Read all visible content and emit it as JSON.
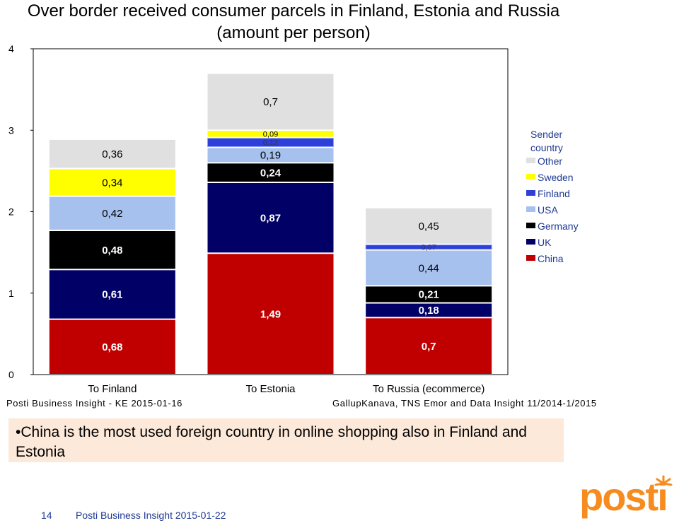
{
  "title": {
    "line1": "Over border received consumer parcels in Finland, Estonia and Russia",
    "line2": "(amount per person)"
  },
  "chart_data": {
    "type": "bar",
    "stacked": true,
    "categories": [
      "To Finland",
      "To Estonia",
      "To Russia (ecommerce)"
    ],
    "series": [
      {
        "name": "China",
        "color": "#c00000",
        "values": [
          0.68,
          1.49,
          0.7
        ],
        "labels": [
          "0,68",
          "1,49",
          "0,7"
        ]
      },
      {
        "name": "UK",
        "color": "#000066",
        "values": [
          0.61,
          0.87,
          0.18
        ],
        "labels": [
          "0,61",
          "0,87",
          "0,18"
        ]
      },
      {
        "name": "Germany",
        "color": "#000000",
        "values": [
          0.48,
          0.24,
          0.21
        ],
        "labels": [
          "0,48",
          "0,24",
          "0,21"
        ]
      },
      {
        "name": "USA",
        "color": "#a6c1ee",
        "values": [
          0.42,
          0.19,
          0.44
        ],
        "labels": [
          "0,42",
          "0,19",
          "0,44"
        ]
      },
      {
        "name": "Finland",
        "color": "#2d3fd6",
        "values": [
          0,
          0.12,
          0.07
        ],
        "labels": [
          "",
          "0,12",
          "0,07"
        ]
      },
      {
        "name": "Sweden",
        "color": "#ffff00",
        "values": [
          0.34,
          0.09,
          0
        ],
        "labels": [
          "0,34",
          "0,09",
          ""
        ]
      },
      {
        "name": "Other",
        "color": "#e0e0e0",
        "values": [
          0.36,
          0.7,
          0.45
        ],
        "labels": [
          "0,36",
          "0,7",
          "0,45"
        ]
      }
    ],
    "ylim": [
      0,
      4
    ],
    "yticks": [
      "0",
      "1",
      "2",
      "3",
      "4"
    ],
    "grid": false,
    "legend_title": "Sender country",
    "legend_order": [
      "Other",
      "Sweden",
      "Finland",
      "USA",
      "Germany",
      "UK",
      "China"
    ],
    "legend_position": "right"
  },
  "sources": {
    "left": "Posti Business Insight - KE 2015-01-16",
    "right": "GallupKanava, TNS Emor and Data Insight 11/2014-1/2015"
  },
  "callout": "•China is the most used foreign country in online shopping also in Finland and Estonia",
  "footer": {
    "page_number": "14",
    "text": "Posti Business Insight 2015-01-22"
  },
  "logo_text": "posti",
  "brand_color": "#f68b1f"
}
